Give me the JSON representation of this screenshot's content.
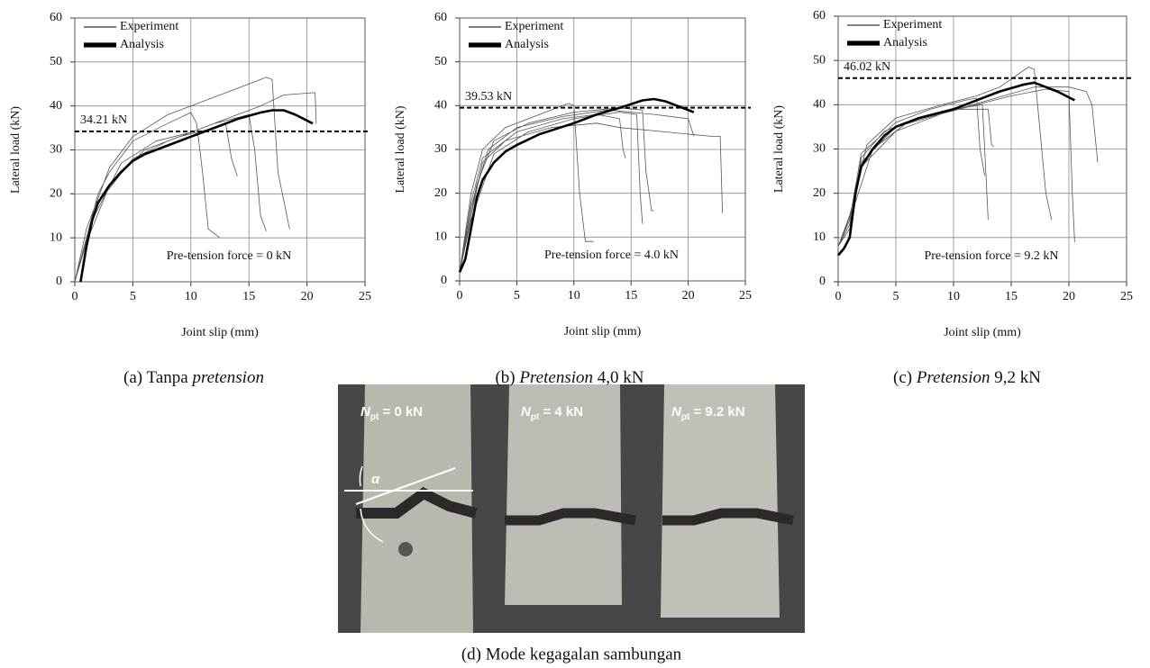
{
  "chart_data": [
    {
      "type": "line",
      "xlabel": "Joint slip (mm)",
      "ylabel": "Lateral load (kN)",
      "xlim": [
        0,
        25
      ],
      "ylim": [
        0,
        60
      ],
      "xticks": [
        0,
        5,
        10,
        15,
        20,
        25
      ],
      "yticks": [
        0,
        10,
        20,
        30,
        40,
        50,
        60
      ],
      "grid": true,
      "legend": "upper left",
      "series": [
        {
          "name": "Experiment",
          "color": "#555555",
          "linewidth": 0.8,
          "x": [
            0,
            1,
            2,
            3,
            5,
            8,
            10,
            10.5,
            11,
            11.5,
            12.5,
            null,
            0,
            1,
            3,
            5,
            8,
            10,
            12,
            15,
            16.5,
            17,
            17.5,
            18.5,
            null,
            0,
            1.5,
            4,
            7,
            10,
            13,
            16,
            18,
            20.5,
            20.7,
            20.8,
            null,
            0,
            1,
            3,
            6,
            9,
            12,
            13,
            13.5,
            14,
            null,
            0,
            2,
            5,
            8,
            12,
            15,
            15.5,
            16,
            16.5
          ],
          "values": [
            0,
            10,
            20,
            25,
            32,
            36,
            38.5,
            36,
            25,
            12,
            10,
            null,
            0,
            12,
            26,
            33,
            38,
            40,
            42,
            45,
            46.5,
            46,
            25,
            12,
            null,
            0,
            14,
            27,
            32,
            34,
            37,
            40,
            42.5,
            43,
            43,
            36,
            null,
            0,
            9,
            22,
            30,
            33,
            35,
            36,
            28,
            24,
            null,
            0,
            18,
            28,
            32,
            36,
            38,
            30,
            15,
            11.5
          ]
        },
        {
          "name": "Analysis",
          "color": "#000000",
          "linewidth": 2.6,
          "x": [
            0.5,
            1,
            1.5,
            2,
            3,
            4,
            5,
            6,
            8,
            10,
            12,
            14,
            16,
            17,
            18,
            19,
            20.5
          ],
          "values": [
            0,
            8,
            14,
            18,
            22,
            25,
            27.5,
            29,
            31,
            33,
            35,
            37,
            38.5,
            39,
            39,
            38,
            36
          ]
        }
      ],
      "hline": {
        "value": 34.21,
        "label": "34.21 kN"
      },
      "annotation": "Pre-tension force = 0 kN",
      "caption": [
        {
          "text": "(a) Tanpa ",
          "italic": false
        },
        {
          "text": "pretension",
          "italic": true
        }
      ]
    },
    {
      "type": "line",
      "xlabel": "Joint slip (mm)",
      "ylabel": "Lateral load (kN)",
      "xlim": [
        0,
        25
      ],
      "ylim": [
        0,
        60
      ],
      "xticks": [
        0,
        5,
        10,
        15,
        20,
        25
      ],
      "yticks": [
        0,
        10,
        20,
        30,
        40,
        50,
        60
      ],
      "grid": true,
      "legend": "upper left",
      "series": [
        {
          "name": "Experiment",
          "color": "#555555",
          "linewidth": 0.8,
          "x": [
            0,
            1,
            2,
            4,
            7,
            9.5,
            10,
            10.5,
            11,
            11.7,
            null,
            0,
            1,
            2,
            4,
            8,
            12,
            14,
            18,
            22,
            22.8,
            23,
            null,
            0,
            1,
            2,
            5,
            9,
            12,
            14,
            14.3,
            14.5,
            null,
            0,
            1.5,
            3,
            6,
            10,
            14,
            16,
            16.3,
            16.8,
            17,
            null,
            0,
            1,
            2.5,
            5,
            9,
            13,
            17,
            20,
            20.5,
            null,
            0,
            1,
            3,
            6,
            10,
            14,
            15.5,
            15.8,
            16
          ],
          "values": [
            2,
            20,
            30,
            35,
            38,
            40.5,
            40,
            20,
            9,
            9,
            null,
            2,
            15,
            27,
            32,
            35,
            36,
            35,
            34,
            33,
            33,
            15.5,
            null,
            2,
            18,
            28,
            34,
            37,
            38,
            37,
            30,
            28,
            null,
            2,
            22,
            32,
            36,
            38.5,
            39.5,
            39,
            25,
            16,
            16,
            null,
            2,
            17,
            30,
            35,
            37.5,
            39,
            38,
            37,
            33,
            null,
            2,
            14,
            29,
            34,
            37,
            38.5,
            38,
            20,
            13
          ]
        },
        {
          "name": "Analysis",
          "color": "#000000",
          "linewidth": 2.6,
          "x": [
            0,
            0.5,
            1,
            1.5,
            2,
            3,
            4,
            5,
            7,
            10,
            12,
            14,
            16,
            17,
            18,
            19.5,
            20.5
          ],
          "values": [
            2,
            5,
            12,
            19,
            23,
            27,
            29.5,
            31,
            33.5,
            36,
            38,
            39.5,
            41.2,
            41.5,
            41,
            39.5,
            38.5
          ]
        }
      ],
      "hline": {
        "value": 39.53,
        "label": "39.53 kN"
      },
      "annotation": "Pre-tension force = 4.0 kN",
      "caption": [
        {
          "text": "(b) ",
          "italic": false
        },
        {
          "text": "Pretension",
          "italic": true
        },
        {
          "text": " 4,0 kN",
          "italic": false
        }
      ]
    },
    {
      "type": "line",
      "xlabel": "Joint slip (mm)",
      "ylabel": "Lateral load (kN)",
      "xlim": [
        0,
        25
      ],
      "ylim": [
        0,
        60
      ],
      "xticks": [
        0,
        5,
        10,
        15,
        20,
        25
      ],
      "yticks": [
        0,
        10,
        20,
        30,
        40,
        50,
        60
      ],
      "grid": true,
      "legend": "upper left",
      "series": [
        {
          "name": "Experiment",
          "color": "#555555",
          "linewidth": 0.8,
          "x": [
            0,
            1,
            2,
            4,
            7,
            10,
            13,
            13.3,
            13.5,
            null,
            0,
            1,
            2,
            5,
            8,
            11,
            12,
            12.3,
            12.7,
            null,
            0,
            1,
            2.5,
            5,
            9,
            12,
            14,
            16.5,
            17,
            18,
            18.5,
            null,
            0,
            1,
            2,
            5,
            9,
            12,
            15,
            18,
            20,
            20.3,
            20.5,
            null,
            0,
            1,
            2,
            5,
            9,
            13,
            17,
            20,
            21.5,
            22,
            22.5,
            null,
            0,
            1.5,
            3,
            6,
            10,
            12.5,
            12.8,
            13
          ],
          "values": [
            8,
            12,
            28,
            34,
            37,
            39,
            39,
            31,
            30.5,
            null,
            8,
            14,
            29,
            36,
            39,
            41,
            41.5,
            30,
            24,
            null,
            8,
            15,
            31,
            37,
            40,
            42,
            44,
            48.5,
            48,
            20,
            14,
            null,
            8,
            13,
            27,
            35,
            38,
            40,
            42,
            43.5,
            43,
            20,
            9,
            null,
            8,
            12,
            26,
            34,
            38,
            41,
            44,
            44,
            43,
            40,
            27,
            null,
            8,
            18,
            30,
            36,
            39,
            40,
            25,
            14
          ]
        },
        {
          "name": "Analysis",
          "color": "#000000",
          "linewidth": 2.6,
          "x": [
            0,
            0.5,
            1,
            1.5,
            2,
            3,
            4,
            5,
            7,
            10,
            12,
            14,
            16,
            17,
            18,
            19,
            20.5
          ],
          "values": [
            6,
            7.5,
            10,
            20,
            26,
            30,
            33,
            35,
            37,
            39,
            41,
            43,
            44.5,
            45,
            44,
            43,
            41
          ]
        }
      ],
      "hline": {
        "value": 46.02,
        "label": "46.02 kN"
      },
      "annotation": "Pre-tension force = 9.2 kN",
      "caption": [
        {
          "text": "(c) ",
          "italic": false
        },
        {
          "text": "Pretension",
          "italic": true
        },
        {
          "text": " 9,2 kN",
          "italic": false
        }
      ]
    }
  ],
  "photo": {
    "labels": [
      {
        "symbol": "N",
        "subscript": "pt",
        "text": " = 0 kN"
      },
      {
        "symbol": "N",
        "subscript": "pt",
        "text": " = 4 kN"
      },
      {
        "symbol": "N",
        "subscript": "pt",
        "text": " = 9.2 kN"
      }
    ],
    "angle_label": "α",
    "caption": "(d) Mode kegagalan sambungan"
  }
}
